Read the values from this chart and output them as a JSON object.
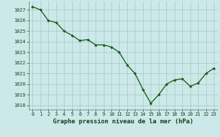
{
  "x": [
    0,
    1,
    2,
    3,
    4,
    5,
    6,
    7,
    8,
    9,
    10,
    11,
    12,
    13,
    14,
    15,
    16,
    17,
    18,
    19,
    20,
    21,
    22,
    23
  ],
  "y": [
    1027.3,
    1027.0,
    1026.0,
    1025.8,
    1025.0,
    1024.6,
    1024.1,
    1024.2,
    1023.7,
    1023.7,
    1023.5,
    1023.0,
    1021.8,
    1021.0,
    1019.5,
    1018.2,
    1019.0,
    1020.0,
    1020.4,
    1020.5,
    1019.8,
    1020.1,
    1021.0,
    1021.5
  ],
  "line_color": "#1a5e1a",
  "marker": "D",
  "marker_size": 1.8,
  "linewidth": 1.0,
  "bg_color": "#cce8e8",
  "grid_color": "#aacccc",
  "xlabel": "Graphe pression niveau de la mer (hPa)",
  "xlabel_fontsize": 6.5,
  "xlabel_fontweight": "bold",
  "yticks": [
    1018,
    1019,
    1020,
    1021,
    1022,
    1023,
    1024,
    1025,
    1026,
    1027
  ],
  "xticks": [
    0,
    1,
    2,
    3,
    4,
    5,
    6,
    7,
    8,
    9,
    10,
    11,
    12,
    13,
    14,
    15,
    16,
    17,
    18,
    19,
    20,
    21,
    22,
    23
  ],
  "ylim": [
    1017.6,
    1027.8
  ],
  "xlim": [
    -0.5,
    23.5
  ],
  "tick_fontsize": 5.0,
  "font_family": "monospace"
}
